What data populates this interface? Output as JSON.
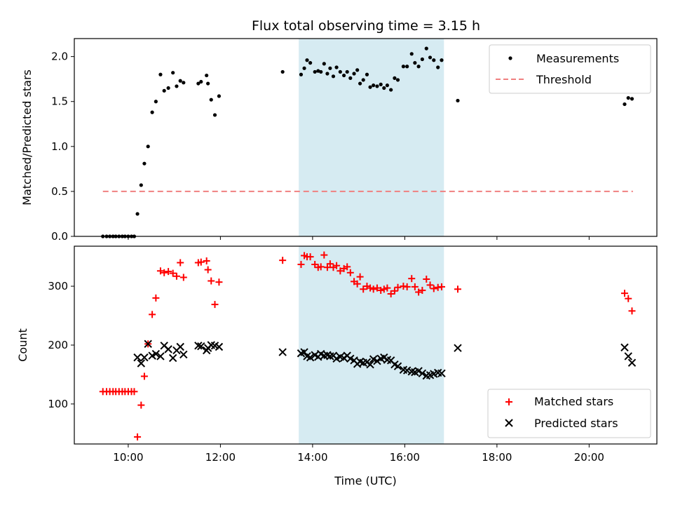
{
  "chart_data": {
    "type": "scatter",
    "title": "Flux total observing time = 3.15 h",
    "xlabel": "Time (UTC)",
    "x_unit": "hours UTC",
    "xlim": [
      8.83,
      21.47
    ],
    "x_ticks": [
      {
        "value": 10,
        "label": "10:00"
      },
      {
        "value": 12,
        "label": "12:00"
      },
      {
        "value": 14,
        "label": "14:00"
      },
      {
        "value": 16,
        "label": "16:00"
      },
      {
        "value": 18,
        "label": "18:00"
      },
      {
        "value": 20,
        "label": "20:00"
      }
    ],
    "shaded_span": {
      "start": 13.7,
      "end": 16.85,
      "color": "#add8e6"
    },
    "top": {
      "ylabel": "Matched/Predicted stars",
      "ylim": [
        0,
        2.2
      ],
      "y_ticks": [
        "0.0",
        "0.5",
        "1.0",
        "1.5",
        "2.0"
      ],
      "legend_position": "top-right",
      "series": [
        {
          "name": "Measurements",
          "marker": "dot",
          "color": "#000000",
          "points": [
            [
              9.45,
              0
            ],
            [
              9.53,
              0
            ],
            [
              9.6,
              0
            ],
            [
              9.67,
              0
            ],
            [
              9.73,
              0
            ],
            [
              9.8,
              0
            ],
            [
              9.87,
              0
            ],
            [
              9.93,
              0
            ],
            [
              10.0,
              0
            ],
            [
              10.07,
              0
            ],
            [
              10.13,
              0
            ],
            [
              10.2,
              0.25
            ],
            [
              10.28,
              0.57
            ],
            [
              10.35,
              0.81
            ],
            [
              10.43,
              1.0
            ],
            [
              10.52,
              1.38
            ],
            [
              10.6,
              1.5
            ],
            [
              10.7,
              1.8
            ],
            [
              10.78,
              1.62
            ],
            [
              10.87,
              1.65
            ],
            [
              10.97,
              1.82
            ],
            [
              11.05,
              1.67
            ],
            [
              11.13,
              1.73
            ],
            [
              11.2,
              1.71
            ],
            [
              11.52,
              1.7
            ],
            [
              11.58,
              1.72
            ],
            [
              11.7,
              1.79
            ],
            [
              11.73,
              1.7
            ],
            [
              11.8,
              1.52
            ],
            [
              11.88,
              1.35
            ],
            [
              11.97,
              1.56
            ],
            [
              13.35,
              1.83
            ],
            [
              13.75,
              1.8
            ],
            [
              13.82,
              1.87
            ],
            [
              13.88,
              1.96
            ],
            [
              13.95,
              1.93
            ],
            [
              14.05,
              1.83
            ],
            [
              14.12,
              1.84
            ],
            [
              14.18,
              1.83
            ],
            [
              14.25,
              1.92
            ],
            [
              14.32,
              1.81
            ],
            [
              14.38,
              1.87
            ],
            [
              14.45,
              1.78
            ],
            [
              14.52,
              1.88
            ],
            [
              14.6,
              1.83
            ],
            [
              14.68,
              1.79
            ],
            [
              14.75,
              1.83
            ],
            [
              14.82,
              1.76
            ],
            [
              14.9,
              1.81
            ],
            [
              14.97,
              1.85
            ],
            [
              15.03,
              1.7
            ],
            [
              15.1,
              1.74
            ],
            [
              15.18,
              1.8
            ],
            [
              15.25,
              1.66
            ],
            [
              15.32,
              1.68
            ],
            [
              15.4,
              1.67
            ],
            [
              15.48,
              1.69
            ],
            [
              15.55,
              1.65
            ],
            [
              15.62,
              1.68
            ],
            [
              15.7,
              1.63
            ],
            [
              15.78,
              1.76
            ],
            [
              15.85,
              1.74
            ],
            [
              15.97,
              1.89
            ],
            [
              16.05,
              1.89
            ],
            [
              16.15,
              2.03
            ],
            [
              16.22,
              1.93
            ],
            [
              16.3,
              1.89
            ],
            [
              16.38,
              1.97
            ],
            [
              16.47,
              2.09
            ],
            [
              16.55,
              1.99
            ],
            [
              16.63,
              1.96
            ],
            [
              16.72,
              1.88
            ],
            [
              16.8,
              1.96
            ],
            [
              17.15,
              1.51
            ],
            [
              20.77,
              1.47
            ],
            [
              20.85,
              1.54
            ],
            [
              20.93,
              1.53
            ]
          ]
        },
        {
          "name": "Threshold",
          "marker": "dashed-line",
          "color": "#f08080",
          "points": [
            [
              9.45,
              0.5
            ],
            [
              20.95,
              0.5
            ]
          ]
        }
      ]
    },
    "bottom": {
      "ylabel": "Count",
      "ylim": [
        32,
        368
      ],
      "y_ticks": [
        "100",
        "200",
        "300"
      ],
      "legend_position": "bottom-right",
      "series": [
        {
          "name": "Matched stars",
          "marker": "plus",
          "color": "#ff0000",
          "points": [
            [
              9.45,
              121
            ],
            [
              9.53,
              121
            ],
            [
              9.6,
              121
            ],
            [
              9.67,
              121
            ],
            [
              9.73,
              121
            ],
            [
              9.8,
              121
            ],
            [
              9.87,
              121
            ],
            [
              9.93,
              121
            ],
            [
              10.0,
              121
            ],
            [
              10.07,
              121
            ],
            [
              10.13,
              121
            ],
            [
              10.2,
              44
            ],
            [
              10.28,
              98
            ],
            [
              10.35,
              147
            ],
            [
              10.43,
              202
            ],
            [
              10.52,
              252
            ],
            [
              10.6,
              280
            ],
            [
              10.7,
              326
            ],
            [
              10.78,
              323
            ],
            [
              10.87,
              325
            ],
            [
              10.97,
              322
            ],
            [
              11.05,
              317
            ],
            [
              11.13,
              340
            ],
            [
              11.2,
              315
            ],
            [
              11.52,
              340
            ],
            [
              11.58,
              341
            ],
            [
              11.7,
              343
            ],
            [
              11.73,
              328
            ],
            [
              11.8,
              309
            ],
            [
              11.88,
              269
            ],
            [
              11.97,
              307
            ],
            [
              13.35,
              344
            ],
            [
              13.75,
              337
            ],
            [
              13.82,
              352
            ],
            [
              13.88,
              350
            ],
            [
              13.95,
              350
            ],
            [
              14.05,
              337
            ],
            [
              14.12,
              332
            ],
            [
              14.18,
              333
            ],
            [
              14.25,
              353
            ],
            [
              14.32,
              332
            ],
            [
              14.38,
              338
            ],
            [
              14.45,
              332
            ],
            [
              14.52,
              335
            ],
            [
              14.6,
              326
            ],
            [
              14.68,
              330
            ],
            [
              14.75,
              333
            ],
            [
              14.82,
              323
            ],
            [
              14.9,
              308
            ],
            [
              14.97,
              304
            ],
            [
              15.03,
              316
            ],
            [
              15.1,
              295
            ],
            [
              15.18,
              300
            ],
            [
              15.25,
              297
            ],
            [
              15.32,
              295
            ],
            [
              15.4,
              297
            ],
            [
              15.48,
              293
            ],
            [
              15.55,
              295
            ],
            [
              15.62,
              297
            ],
            [
              15.7,
              287
            ],
            [
              15.78,
              292
            ],
            [
              15.85,
              298
            ],
            [
              15.97,
              300
            ],
            [
              16.05,
              299
            ],
            [
              16.15,
              313
            ],
            [
              16.22,
              299
            ],
            [
              16.3,
              290
            ],
            [
              16.38,
              293
            ],
            [
              16.47,
              312
            ],
            [
              16.55,
              302
            ],
            [
              16.63,
              296
            ],
            [
              16.72,
              298
            ],
            [
              16.8,
              299
            ],
            [
              17.15,
              295
            ],
            [
              20.77,
              288
            ],
            [
              20.85,
              279
            ],
            [
              20.93,
              258
            ]
          ]
        },
        {
          "name": "Predicted stars",
          "marker": "x",
          "color": "#000000",
          "points": [
            [
              10.2,
              179
            ],
            [
              10.28,
              169
            ],
            [
              10.35,
              179
            ],
            [
              10.43,
              202
            ],
            [
              10.52,
              182
            ],
            [
              10.6,
              185
            ],
            [
              10.7,
              181
            ],
            [
              10.78,
              199
            ],
            [
              10.87,
              193
            ],
            [
              10.97,
              178
            ],
            [
              11.05,
              191
            ],
            [
              11.13,
              197
            ],
            [
              11.2,
              184
            ],
            [
              11.52,
              199
            ],
            [
              11.58,
              198
            ],
            [
              11.7,
              191
            ],
            [
              11.73,
              195
            ],
            [
              11.8,
              200
            ],
            [
              11.88,
              199
            ],
            [
              11.97,
              197
            ],
            [
              13.35,
              188
            ],
            [
              13.75,
              186
            ],
            [
              13.82,
              188
            ],
            [
              13.88,
              181
            ],
            [
              13.95,
              179
            ],
            [
              14.05,
              183
            ],
            [
              14.12,
              180
            ],
            [
              14.18,
              185
            ],
            [
              14.25,
              182
            ],
            [
              14.32,
              183
            ],
            [
              14.38,
              181
            ],
            [
              14.45,
              182
            ],
            [
              14.52,
              177
            ],
            [
              14.6,
              180
            ],
            [
              14.68,
              178
            ],
            [
              14.75,
              182
            ],
            [
              14.82,
              177
            ],
            [
              14.9,
              174
            ],
            [
              14.97,
              168
            ],
            [
              15.03,
              172
            ],
            [
              15.1,
              170
            ],
            [
              15.18,
              171
            ],
            [
              15.25,
              167
            ],
            [
              15.32,
              176
            ],
            [
              15.4,
              173
            ],
            [
              15.48,
              177
            ],
            [
              15.55,
              179
            ],
            [
              15.62,
              175
            ],
            [
              15.7,
              174
            ],
            [
              15.78,
              167
            ],
            [
              15.85,
              164
            ],
            [
              15.97,
              158
            ],
            [
              16.05,
              157
            ],
            [
              16.15,
              155
            ],
            [
              16.22,
              154
            ],
            [
              16.3,
              156
            ],
            [
              16.38,
              152
            ],
            [
              16.47,
              148
            ],
            [
              16.55,
              149
            ],
            [
              16.63,
              151
            ],
            [
              16.72,
              153
            ],
            [
              16.8,
              152
            ],
            [
              17.15,
              195
            ],
            [
              20.77,
              196
            ],
            [
              20.85,
              181
            ],
            [
              20.93,
              170
            ]
          ]
        }
      ]
    }
  }
}
